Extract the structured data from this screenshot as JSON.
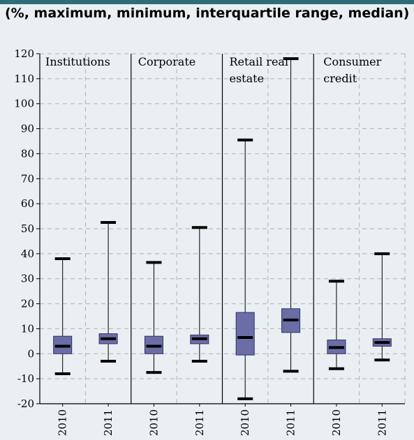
{
  "header": {
    "subtitle": "(%, maximum, minimum, interquartile range, median)"
  },
  "colors": {
    "background": "#e9eff2",
    "box_fill": "#6b6ea6",
    "box_stroke": "#2e2f66",
    "whisker": "#000000",
    "grid": "#b3b3b3",
    "topbar": "#2e6d79"
  },
  "chart_data": {
    "type": "boxplot",
    "title": "",
    "xlabel": "",
    "ylabel": "",
    "ylim": [
      -20,
      120
    ],
    "yticks": [
      -20,
      -10,
      0,
      10,
      20,
      30,
      40,
      50,
      60,
      70,
      80,
      90,
      100,
      110,
      120
    ],
    "grid": true,
    "groups": [
      {
        "name": "Institutions",
        "label_lines": [
          "Institutions"
        ],
        "boxes": [
          {
            "year": "2010",
            "min": -8,
            "q1": 0,
            "median": 3,
            "q3": 7,
            "max": 38
          },
          {
            "year": "2011",
            "min": -3,
            "q1": 4,
            "median": 6,
            "q3": 8,
            "max": 52.5
          }
        ]
      },
      {
        "name": "Corporate",
        "label_lines": [
          "Corporate"
        ],
        "boxes": [
          {
            "year": "2010",
            "min": -7.5,
            "q1": 0,
            "median": 3,
            "q3": 7,
            "max": 36.5
          },
          {
            "year": "2011",
            "min": -3,
            "q1": 4,
            "median": 6,
            "q3": 7.5,
            "max": 50.5
          }
        ]
      },
      {
        "name": "Retail real estate",
        "label_lines": [
          "Retail real",
          "estate"
        ],
        "boxes": [
          {
            "year": "2010",
            "min": -18,
            "q1": -0.5,
            "median": 6.5,
            "q3": 16.5,
            "max": 85.5
          },
          {
            "year": "2011",
            "min": -7,
            "q1": 8.5,
            "median": 13.5,
            "q3": 18,
            "max": 118
          }
        ]
      },
      {
        "name": "Consumer credit",
        "label_lines": [
          "Consumer",
          "credit"
        ],
        "boxes": [
          {
            "year": "2010",
            "min": -6,
            "q1": 0,
            "median": 2.5,
            "q3": 5.5,
            "max": 29
          },
          {
            "year": "2011",
            "min": -2.5,
            "q1": 3,
            "median": 4.5,
            "q3": 6,
            "max": 40
          }
        ]
      }
    ]
  }
}
